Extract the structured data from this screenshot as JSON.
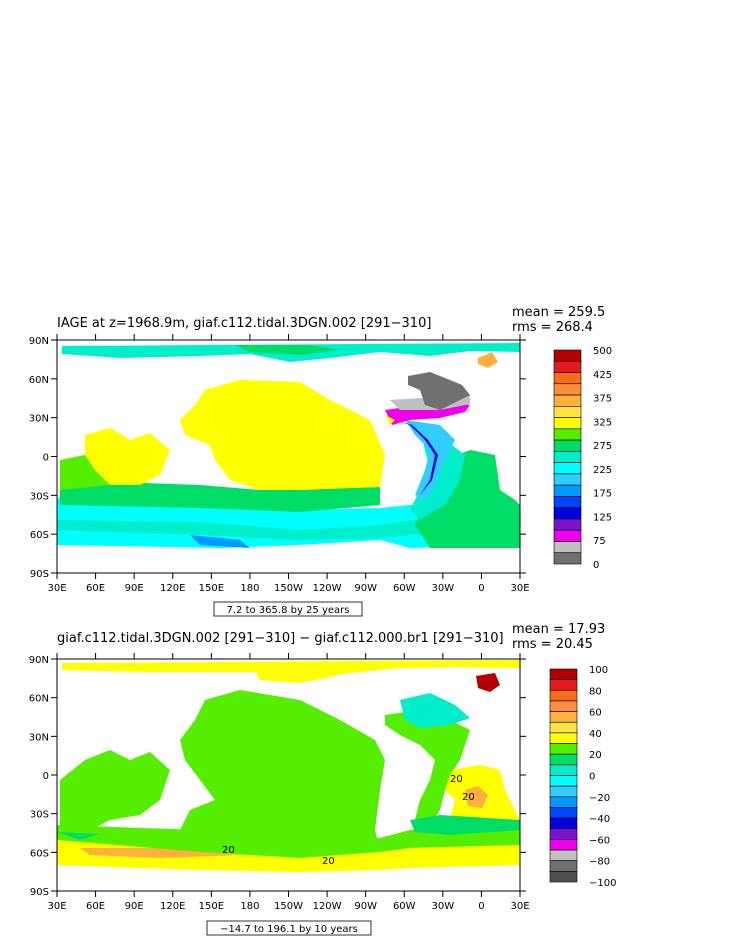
{
  "chart_data": [
    {
      "type": "heatmap",
      "title": "IAGE at z=1968.9m, giaf.c112.tidal.3DGN.002 [291−310]",
      "mean_label": "mean = 259.5",
      "rms_label": "rms = 268.4",
      "range_label": "7.2 to 365.8 by 25 years",
      "x_ticks": [
        "30E",
        "60E",
        "90E",
        "120E",
        "150E",
        "180",
        "150W",
        "120W",
        "90W",
        "60W",
        "30W",
        "0",
        "30E"
      ],
      "y_ticks": [
        "90N",
        "60N",
        "30N",
        "0",
        "30S",
        "60S",
        "90S"
      ],
      "colorbar": {
        "labels": [
          "500",
          "425",
          "375",
          "325",
          "275",
          "225",
          "175",
          "125",
          "75",
          "0"
        ],
        "colors": [
          "#b40000",
          "#e41a1c",
          "#f46d17",
          "#fd8d3c",
          "#fdb03c",
          "#fee43c",
          "#ffff00",
          "#55ee00",
          "#00dd66",
          "#00eecc",
          "#00ffff",
          "#33ccff",
          "#0099ff",
          "#0044ff",
          "#0000dd",
          "#7b12cc",
          "#ee00ee",
          "#c0c0c0",
          "#707070"
        ]
      }
    },
    {
      "type": "heatmap",
      "title": "giaf.c112.tidal.3DGN.002 [291−310] − giaf.c112.000.br1 [291−310]",
      "mean_label": "mean = 17.93",
      "rms_label": "rms = 20.45",
      "range_label": "−14.7 to 196.1 by 10 years",
      "contour_labels": [
        "20",
        "20",
        "20",
        "20"
      ],
      "x_ticks": [
        "30E",
        "60E",
        "90E",
        "120E",
        "150E",
        "180",
        "150W",
        "120W",
        "90W",
        "60W",
        "30W",
        "0",
        "30E"
      ],
      "y_ticks": [
        "90N",
        "60N",
        "30N",
        "0",
        "30S",
        "60S",
        "90S"
      ],
      "colorbar": {
        "labels": [
          "100",
          "80",
          "60",
          "40",
          "20",
          "0",
          "−20",
          "−40",
          "−60",
          "−80",
          "−100"
        ],
        "colors": [
          "#b40000",
          "#e41a1c",
          "#f46d17",
          "#fd8d3c",
          "#fdb03c",
          "#fee43c",
          "#ffff00",
          "#55ee00",
          "#00dd66",
          "#00eecc",
          "#00ffff",
          "#33ccff",
          "#0099ff",
          "#0044ff",
          "#0000dd",
          "#7b12cc",
          "#ee00ee",
          "#c0c0c0",
          "#707070",
          "#505050"
        ]
      }
    }
  ],
  "palette": {
    "yellow": "#ffff00",
    "lightgreen": "#55ee00",
    "green": "#00dd66",
    "teal": "#00eecc",
    "cyan": "#00ffff",
    "sky": "#33ccff",
    "blue": "#0099ff",
    "darkblue": "#0000dd",
    "magenta": "#ee00ee",
    "grey": "#c0c0c0",
    "darkgrey": "#707070",
    "red": "#b40000",
    "orange": "#fdb03c"
  }
}
